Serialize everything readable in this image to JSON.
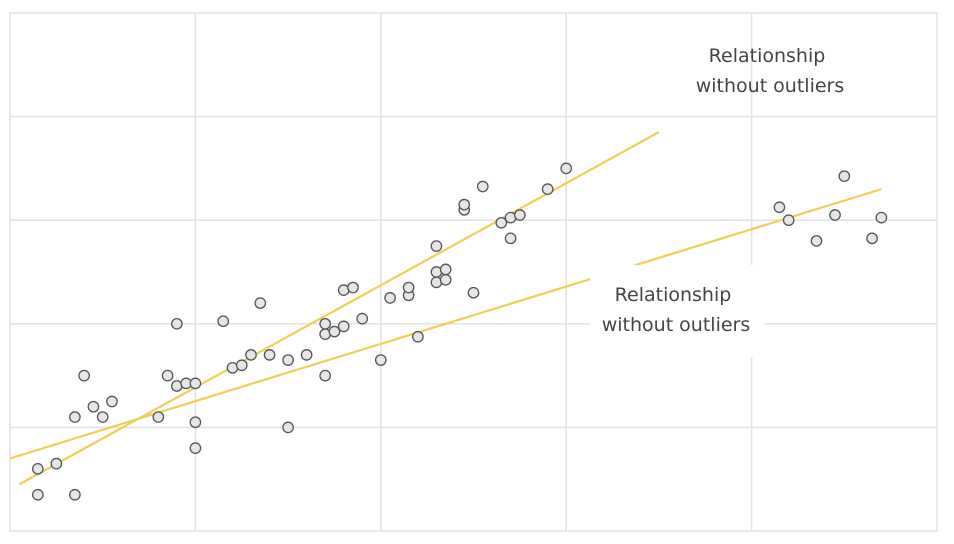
{
  "chart_data": {
    "type": "scatter",
    "xlim": [
      0,
      10
    ],
    "ylim": [
      0,
      10
    ],
    "x_gridlines": [
      2,
      4,
      6,
      8
    ],
    "y_gridlines": [
      2,
      4,
      6,
      8
    ],
    "grid": true,
    "points": [
      {
        "x": 0.3,
        "y": 1.2
      },
      {
        "x": 0.3,
        "y": 0.7
      },
      {
        "x": 0.5,
        "y": 1.3
      },
      {
        "x": 0.7,
        "y": 0.7
      },
      {
        "x": 0.7,
        "y": 2.2
      },
      {
        "x": 0.8,
        "y": 3.0
      },
      {
        "x": 0.9,
        "y": 2.4
      },
      {
        "x": 1.0,
        "y": 2.2
      },
      {
        "x": 1.1,
        "y": 2.5
      },
      {
        "x": 1.6,
        "y": 2.2
      },
      {
        "x": 1.7,
        "y": 3.0
      },
      {
        "x": 1.8,
        "y": 2.8
      },
      {
        "x": 1.8,
        "y": 4.0
      },
      {
        "x": 1.9,
        "y": 2.85
      },
      {
        "x": 2.0,
        "y": 2.85
      },
      {
        "x": 2.0,
        "y": 2.1
      },
      {
        "x": 2.0,
        "y": 1.6
      },
      {
        "x": 2.3,
        "y": 4.05
      },
      {
        "x": 2.4,
        "y": 3.15
      },
      {
        "x": 2.5,
        "y": 3.2
      },
      {
        "x": 2.6,
        "y": 3.4
      },
      {
        "x": 2.7,
        "y": 4.4
      },
      {
        "x": 2.8,
        "y": 3.4
      },
      {
        "x": 3.0,
        "y": 3.3
      },
      {
        "x": 3.0,
        "y": 2.0
      },
      {
        "x": 3.2,
        "y": 3.4
      },
      {
        "x": 3.4,
        "y": 3.0
      },
      {
        "x": 3.4,
        "y": 3.8
      },
      {
        "x": 3.4,
        "y": 4.0
      },
      {
        "x": 3.5,
        "y": 3.85
      },
      {
        "x": 3.6,
        "y": 3.95
      },
      {
        "x": 3.6,
        "y": 4.65
      },
      {
        "x": 3.7,
        "y": 4.7
      },
      {
        "x": 3.8,
        "y": 4.1
      },
      {
        "x": 4.0,
        "y": 3.3
      },
      {
        "x": 4.1,
        "y": 4.5
      },
      {
        "x": 4.3,
        "y": 4.55
      },
      {
        "x": 4.3,
        "y": 4.7
      },
      {
        "x": 4.4,
        "y": 3.75
      },
      {
        "x": 4.6,
        "y": 4.8
      },
      {
        "x": 4.6,
        "y": 5.0
      },
      {
        "x": 4.6,
        "y": 5.5
      },
      {
        "x": 4.7,
        "y": 4.85
      },
      {
        "x": 4.7,
        "y": 5.05
      },
      {
        "x": 4.9,
        "y": 6.2
      },
      {
        "x": 4.9,
        "y": 6.3
      },
      {
        "x": 5.0,
        "y": 4.6
      },
      {
        "x": 5.1,
        "y": 6.65
      },
      {
        "x": 5.3,
        "y": 5.95
      },
      {
        "x": 5.4,
        "y": 6.05
      },
      {
        "x": 5.4,
        "y": 5.65
      },
      {
        "x": 5.5,
        "y": 6.1
      },
      {
        "x": 5.8,
        "y": 6.6
      },
      {
        "x": 6.0,
        "y": 7.0
      },
      {
        "x": 8.3,
        "y": 6.25
      },
      {
        "x": 8.4,
        "y": 6.0
      },
      {
        "x": 8.7,
        "y": 5.6
      },
      {
        "x": 8.9,
        "y": 6.1
      },
      {
        "x": 9.0,
        "y": 6.85
      },
      {
        "x": 9.3,
        "y": 5.65
      },
      {
        "x": 9.4,
        "y": 6.05
      }
    ],
    "lines": [
      {
        "x": [
          0.1,
          7.0
        ],
        "y": [
          0.9,
          7.7
        ]
      },
      {
        "x": [
          0.0,
          9.4
        ],
        "y": [
          1.4,
          6.6
        ]
      }
    ],
    "annotations": [
      {
        "text_lines": [
          "Relationship",
          "without outliers"
        ]
      },
      {
        "text_lines": [
          "Relationship",
          "without outliers"
        ]
      }
    ]
  }
}
